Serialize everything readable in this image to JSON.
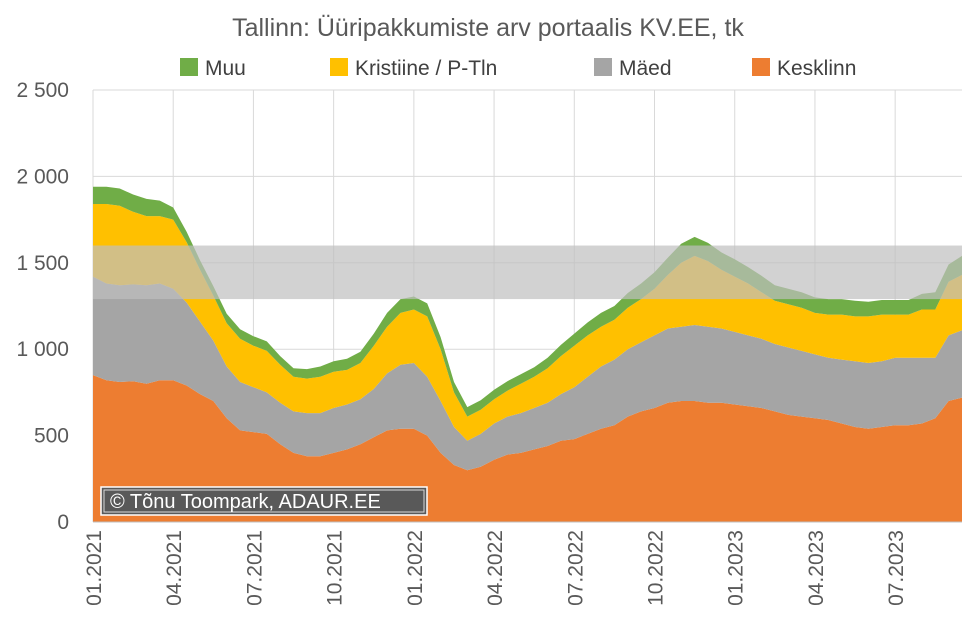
{
  "chart_data": {
    "type": "area",
    "stacked": true,
    "title": "Tallinn: Üüripakkumiste arv portaalis KV.EE, tk",
    "xlabel": "",
    "ylabel": "",
    "ylim": [
      0,
      2500
    ],
    "y_ticks": [
      {
        "value": 0,
        "label": "0"
      },
      {
        "value": 500,
        "label": "500"
      },
      {
        "value": 1000,
        "label": "1 000"
      },
      {
        "value": 1500,
        "label": "1 500"
      },
      {
        "value": 2000,
        "label": "2 000"
      },
      {
        "value": 2500,
        "label": "2 500"
      }
    ],
    "x_ticks": [
      {
        "month": 0,
        "label": "01.2021"
      },
      {
        "month": 3,
        "label": "04.2021"
      },
      {
        "month": 6,
        "label": "07.2021"
      },
      {
        "month": 9,
        "label": "10.2021"
      },
      {
        "month": 12,
        "label": "01.2022"
      },
      {
        "month": 15,
        "label": "04.2022"
      },
      {
        "month": 18,
        "label": "07.2022"
      },
      {
        "month": 21,
        "label": "10.2022"
      },
      {
        "month": 24,
        "label": "01.2023"
      },
      {
        "month": 27,
        "label": "04.2023"
      },
      {
        "month": 30,
        "label": "07.2023"
      }
    ],
    "x_months": [
      0,
      0.5,
      1,
      1.5,
      2,
      2.5,
      3,
      3.5,
      4,
      4.5,
      5,
      5.5,
      6,
      6.5,
      7,
      7.5,
      8,
      8.5,
      9,
      9.5,
      10,
      10.5,
      11,
      11.5,
      12,
      12.5,
      13,
      13.5,
      14,
      14.5,
      15,
      15.5,
      16,
      16.5,
      17,
      17.5,
      18,
      18.5,
      19,
      19.5,
      20,
      20.5,
      21,
      21.5,
      22,
      22.5,
      23,
      23.5,
      24,
      24.5,
      25,
      25.5,
      26,
      26.5,
      27,
      27.5,
      28,
      28.5,
      29,
      29.5,
      30,
      30.5,
      31,
      31.5,
      32,
      32.5
    ],
    "series": [
      {
        "name": "Kesklinn",
        "color": "#ED7D31",
        "values": [
          850,
          820,
          810,
          815,
          800,
          820,
          820,
          790,
          740,
          700,
          600,
          530,
          520,
          510,
          450,
          400,
          380,
          380,
          400,
          420,
          450,
          490,
          530,
          540,
          540,
          500,
          400,
          330,
          300,
          320,
          360,
          390,
          400,
          420,
          440,
          470,
          480,
          510,
          540,
          560,
          610,
          640,
          660,
          690,
          700,
          700,
          690,
          690,
          680,
          670,
          660,
          640,
          620,
          610,
          600,
          590,
          570,
          550,
          540,
          550,
          560,
          560,
          570,
          600,
          700,
          720
        ]
      },
      {
        "name": "Mäed",
        "color": "#A5A5A5",
        "values": [
          570,
          560,
          560,
          560,
          570,
          560,
          530,
          480,
          420,
          350,
          300,
          280,
          260,
          240,
          240,
          240,
          250,
          250,
          260,
          260,
          260,
          280,
          330,
          370,
          380,
          340,
          300,
          220,
          170,
          190,
          210,
          220,
          230,
          240,
          250,
          270,
          300,
          330,
          360,
          380,
          390,
          400,
          420,
          430,
          430,
          440,
          440,
          430,
          420,
          410,
          400,
          390,
          390,
          380,
          370,
          360,
          370,
          380,
          380,
          380,
          390,
          390,
          380,
          350,
          380,
          390
        ]
      },
      {
        "name": "Kristiine / P-Tln",
        "color": "#FFC000",
        "values": [
          420,
          460,
          460,
          420,
          400,
          390,
          400,
          350,
          300,
          260,
          250,
          250,
          240,
          240,
          220,
          200,
          200,
          210,
          210,
          200,
          210,
          250,
          270,
          300,
          310,
          350,
          300,
          200,
          140,
          140,
          140,
          150,
          170,
          180,
          200,
          220,
          240,
          240,
          230,
          230,
          240,
          250,
          270,
          310,
          370,
          400,
          380,
          340,
          320,
          300,
          270,
          250,
          250,
          250,
          240,
          250,
          260,
          260,
          270,
          270,
          250,
          250,
          280,
          280,
          310,
          320
        ]
      },
      {
        "name": "Muu",
        "color": "#70AD47",
        "values": [
          100,
          100,
          100,
          100,
          100,
          90,
          70,
          60,
          55,
          55,
          55,
          55,
          55,
          55,
          50,
          50,
          55,
          60,
          60,
          65,
          65,
          70,
          80,
          80,
          75,
          75,
          70,
          60,
          55,
          55,
          55,
          55,
          55,
          55,
          60,
          65,
          70,
          75,
          80,
          80,
          85,
          90,
          95,
          100,
          110,
          110,
          105,
          100,
          100,
          95,
          95,
          90,
          90,
          90,
          90,
          90,
          90,
          90,
          85,
          85,
          85,
          85,
          90,
          100,
          100,
          110
        ]
      }
    ],
    "band": {
      "low": 1290,
      "high": 1600,
      "color": "#BFBFBF"
    },
    "grid": true,
    "legend_position": "top"
  },
  "credit": {
    "label": "© Tõnu Toompark, ADAUR.EE"
  }
}
